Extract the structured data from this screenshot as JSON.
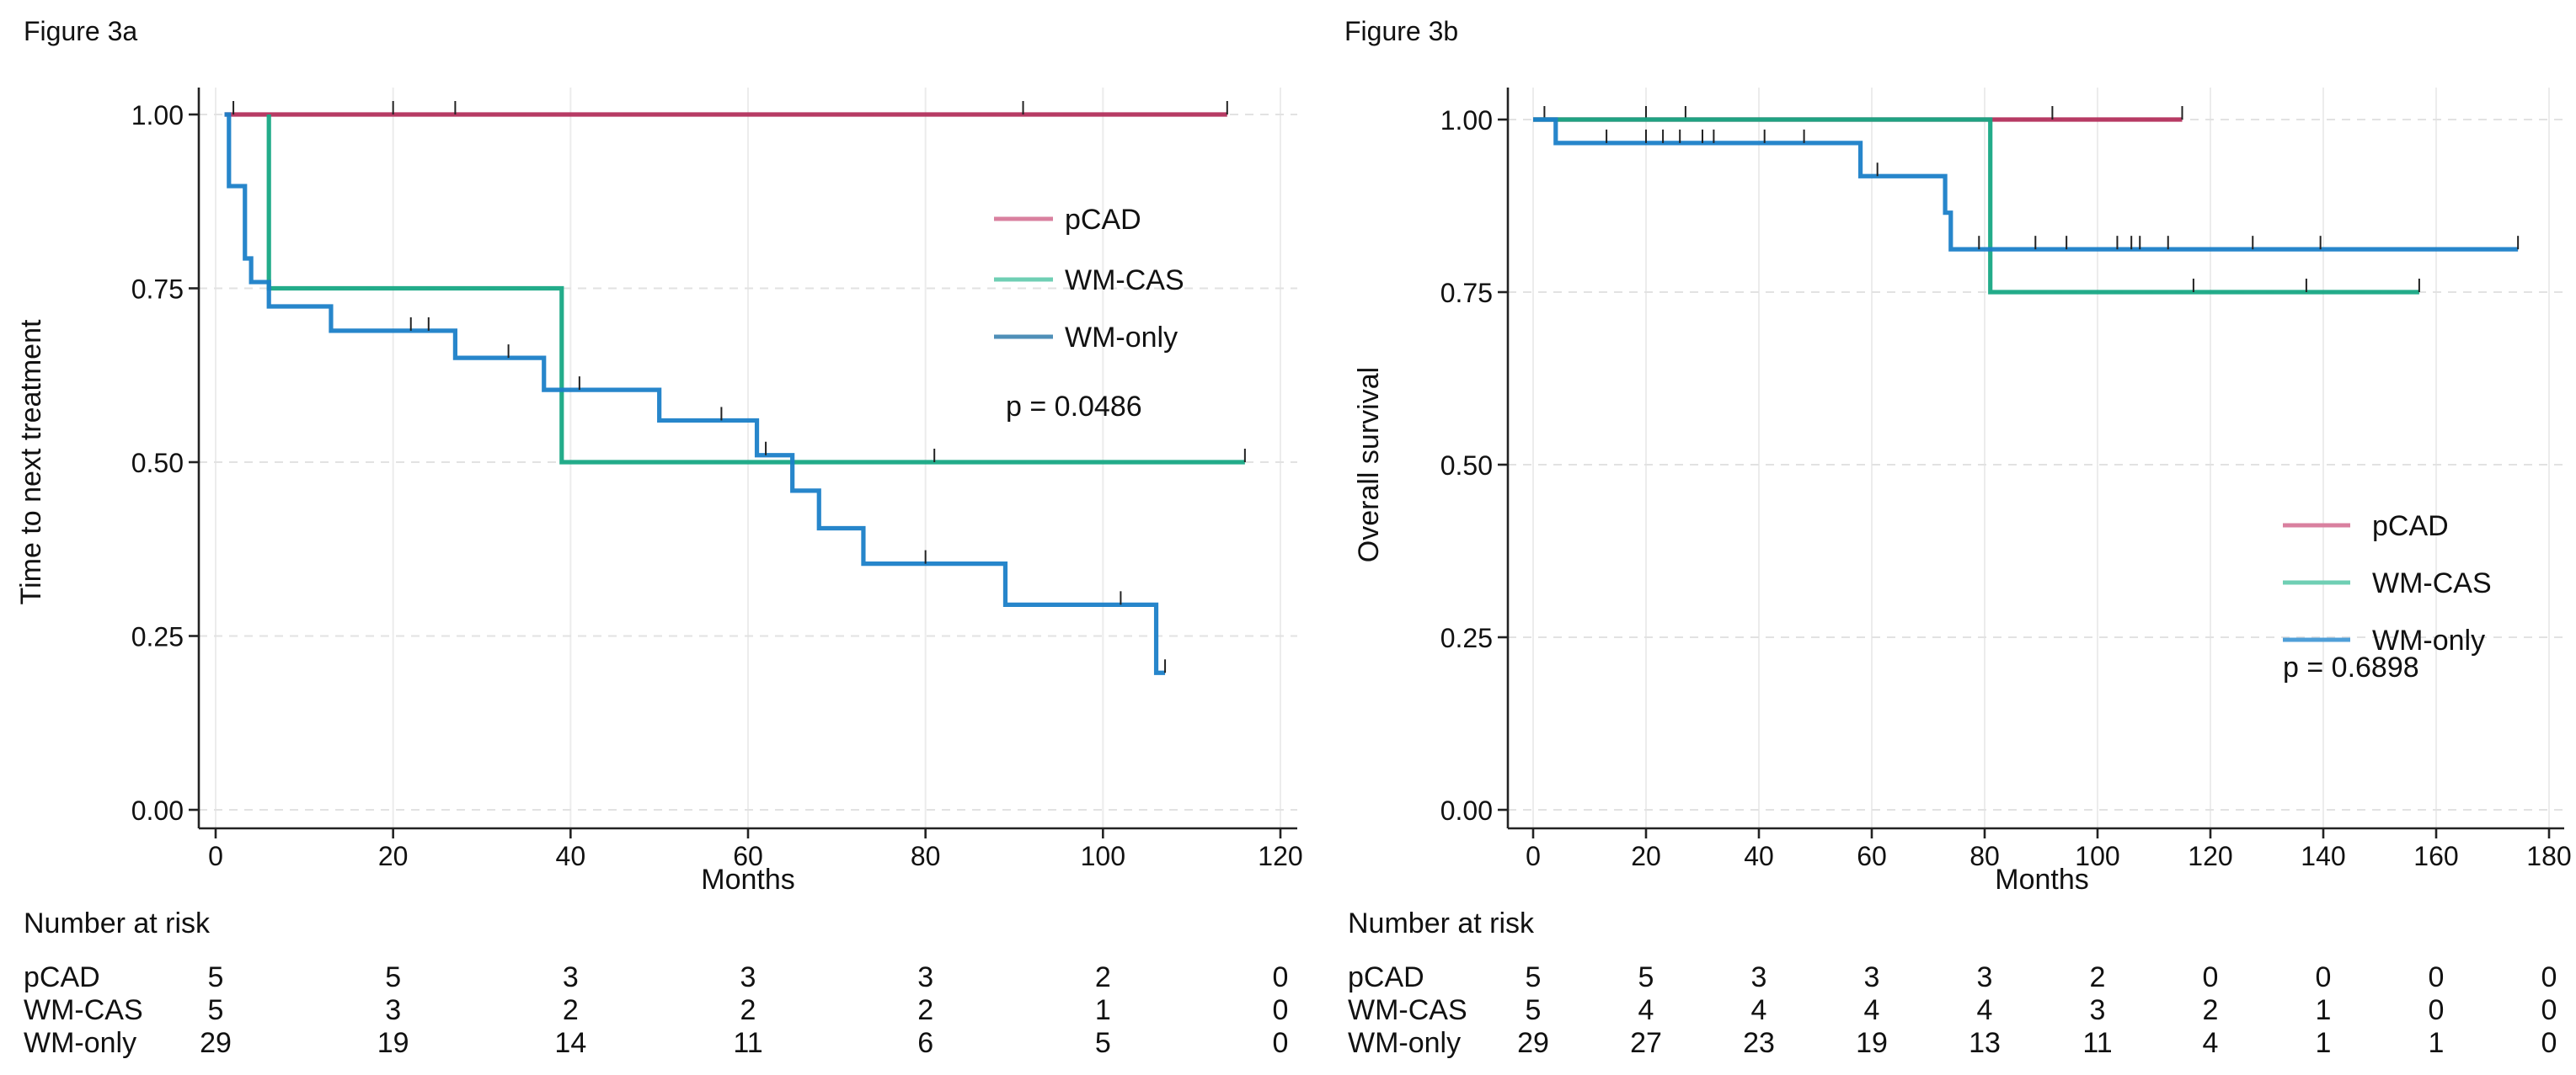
{
  "chart_data": [
    {
      "type": "line",
      "subtype": "kaplan-meier step",
      "title": "Figure 3a",
      "xlabel": "Months",
      "ylabel": "Time to next treatment",
      "xlim": [
        0,
        120
      ],
      "ylim": [
        0,
        1
      ],
      "xticks": [
        "0",
        "20",
        "40",
        "60",
        "80",
        "100",
        "120"
      ],
      "yticks": [
        "0.00",
        "0.25",
        "0.50",
        "0.75",
        "1.00"
      ],
      "grid": true,
      "legend_position": "right",
      "annotation": "p = 0.0486",
      "series": [
        {
          "name": "pCAD",
          "color": "#b3305c",
          "legend_color": "#d9809f",
          "steps": [
            [
              1,
              1.0
            ],
            [
              114,
              1.0
            ]
          ],
          "censored": [
            2,
            20,
            27,
            91,
            114
          ]
        },
        {
          "name": "WM-CAS",
          "color": "#17a884",
          "legend_color": "#6fcfb4",
          "steps": [
            [
              6,
              1.0
            ],
            [
              6,
              0.75
            ],
            [
              39,
              0.75
            ],
            [
              39,
              0.5
            ],
            [
              116,
              0.5
            ]
          ],
          "censored": [
            81,
            116
          ]
        },
        {
          "name": "WM-only",
          "color": "#1b7fc8",
          "legend_color": "#4f8fb8",
          "steps": [
            [
              1,
              1.0
            ],
            [
              1.5,
              1.0
            ],
            [
              1.5,
              0.897
            ],
            [
              3.3,
              0.897
            ],
            [
              3.3,
              0.793
            ],
            [
              4,
              0.793
            ],
            [
              4,
              0.759
            ],
            [
              6,
              0.759
            ],
            [
              6,
              0.724
            ],
            [
              13,
              0.724
            ],
            [
              13,
              0.689
            ],
            [
              27,
              0.689
            ],
            [
              27,
              0.65
            ],
            [
              37,
              0.65
            ],
            [
              37,
              0.604
            ],
            [
              50,
              0.604
            ],
            [
              50,
              0.56
            ],
            [
              61,
              0.56
            ],
            [
              61,
              0.51
            ],
            [
              65,
              0.51
            ],
            [
              65,
              0.459
            ],
            [
              68,
              0.459
            ],
            [
              68,
              0.405
            ],
            [
              73,
              0.405
            ],
            [
              73,
              0.354
            ],
            [
              89,
              0.354
            ],
            [
              89,
              0.295
            ],
            [
              106,
              0.295
            ],
            [
              106,
              0.197
            ],
            [
              107,
              0.197
            ]
          ],
          "censored": [
            22,
            24,
            33,
            41,
            57,
            62,
            80,
            102,
            107
          ]
        }
      ],
      "risk_table": {
        "title": "Number at risk",
        "times": [
          0,
          20,
          40,
          60,
          80,
          100,
          120
        ],
        "rows": [
          {
            "label": "pCAD",
            "values": [
              "5",
              "5",
              "3",
              "3",
              "3",
              "2",
              "0"
            ]
          },
          {
            "label": "WM-CAS",
            "values": [
              "5",
              "3",
              "2",
              "2",
              "2",
              "1",
              "0"
            ]
          },
          {
            "label": "WM-only",
            "values": [
              "29",
              "19",
              "14",
              "11",
              "6",
              "5",
              "0"
            ]
          }
        ]
      }
    },
    {
      "type": "line",
      "subtype": "kaplan-meier step",
      "title": "Figure 3b",
      "xlabel": "Months",
      "ylabel": "Overall survival",
      "xlim": [
        0,
        180
      ],
      "ylim": [
        0,
        1
      ],
      "xticks": [
        "0",
        "20",
        "40",
        "60",
        "80",
        "100",
        "120",
        "140",
        "160",
        "180"
      ],
      "yticks": [
        "0.00",
        "0.25",
        "0.50",
        "0.75",
        "1.00"
      ],
      "grid": true,
      "legend_position": "right",
      "annotation": "p = 0.6898",
      "series": [
        {
          "name": "pCAD",
          "color": "#b3305c",
          "legend_color": "#d9809f",
          "steps": [
            [
              0,
              1.0
            ],
            [
              115,
              1.0
            ]
          ],
          "censored": [
            2,
            20,
            27,
            92,
            115
          ]
        },
        {
          "name": "WM-CAS",
          "color": "#17a884",
          "legend_color": "#6fcfb4",
          "steps": [
            [
              0,
              1.0
            ],
            [
              81,
              1.0
            ],
            [
              81,
              0.75
            ],
            [
              157,
              0.75
            ]
          ],
          "censored": [
            117,
            137,
            157
          ]
        },
        {
          "name": "WM-only",
          "color": "#1b7fc8",
          "legend_color": "#4f9fd8",
          "steps": [
            [
              0,
              1.0
            ],
            [
              4,
              1.0
            ],
            [
              4,
              0.966
            ],
            [
              58,
              0.966
            ],
            [
              58,
              0.918
            ],
            [
              73,
              0.918
            ],
            [
              73,
              0.865
            ],
            [
              74,
              0.865
            ],
            [
              74,
              0.812
            ],
            [
              174.5,
              0.812
            ]
          ],
          "censored": [
            13,
            20,
            23,
            26,
            30,
            32,
            41,
            48,
            61,
            79,
            89,
            94.5,
            103.5,
            106,
            107.5,
            112.5,
            127.5,
            139.5,
            174.5
          ]
        }
      ],
      "risk_table": {
        "title": "Number at risk",
        "times": [
          0,
          20,
          40,
          60,
          80,
          100,
          120,
          140,
          160,
          180
        ],
        "rows": [
          {
            "label": "pCAD",
            "values": [
              "5",
              "5",
              "3",
              "3",
              "3",
              "2",
              "0",
              "0",
              "0",
              "0"
            ]
          },
          {
            "label": "WM-CAS",
            "values": [
              "5",
              "4",
              "4",
              "4",
              "4",
              "3",
              "2",
              "1",
              "0",
              "0"
            ]
          },
          {
            "label": "WM-only",
            "values": [
              "29",
              "27",
              "23",
              "19",
              "13",
              "11",
              "4",
              "1",
              "1",
              "0"
            ]
          }
        ]
      }
    }
  ]
}
